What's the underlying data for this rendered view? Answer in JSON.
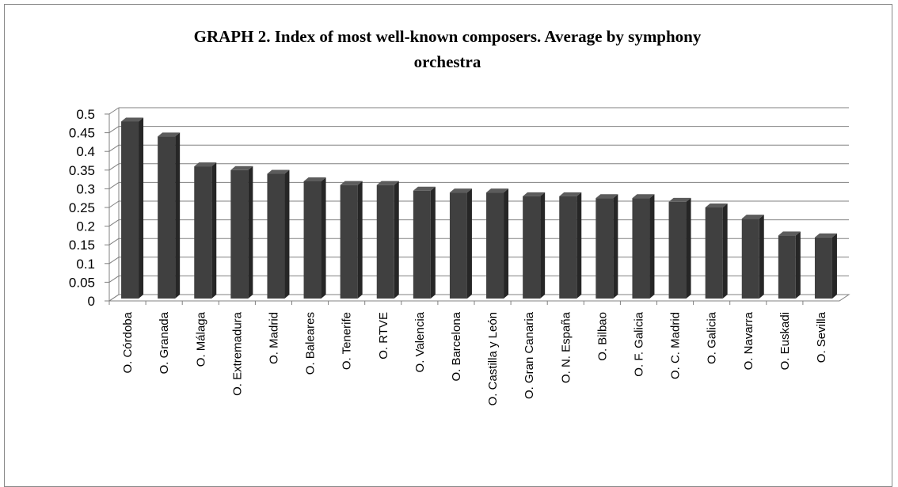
{
  "chart_data": {
    "type": "bar",
    "title": "GRAPH 2. Index of most well-known composers. Average by symphony orchestra",
    "categories": [
      "O. Córdoba",
      "O. Granada",
      "O. Málaga",
      "O. Extremadura",
      "O. Madrid",
      "O. Baleares",
      "O. Tenerife",
      "O. RTVE",
      "O. Valencia",
      "O. Barcelona",
      "O. Castilla y León",
      "O. Gran Canaria",
      "O. N. España",
      "O. Bilbao",
      "O. F. Galicia",
      "O. C. Madrid",
      "O. Galicia",
      "O. Navarra",
      "O. Euskadi",
      "O. Sevilla"
    ],
    "values": [
      0.48,
      0.44,
      0.36,
      0.35,
      0.34,
      0.32,
      0.31,
      0.31,
      0.295,
      0.29,
      0.29,
      0.28,
      0.28,
      0.275,
      0.275,
      0.265,
      0.25,
      0.22,
      0.175,
      0.17
    ],
    "color": "#404040",
    "ylim": [
      0,
      0.5
    ],
    "yticks": [
      0,
      0.05,
      0.1,
      0.15,
      0.2,
      0.25,
      0.3,
      0.35,
      0.4,
      0.45,
      0.5
    ],
    "grid": true
  }
}
